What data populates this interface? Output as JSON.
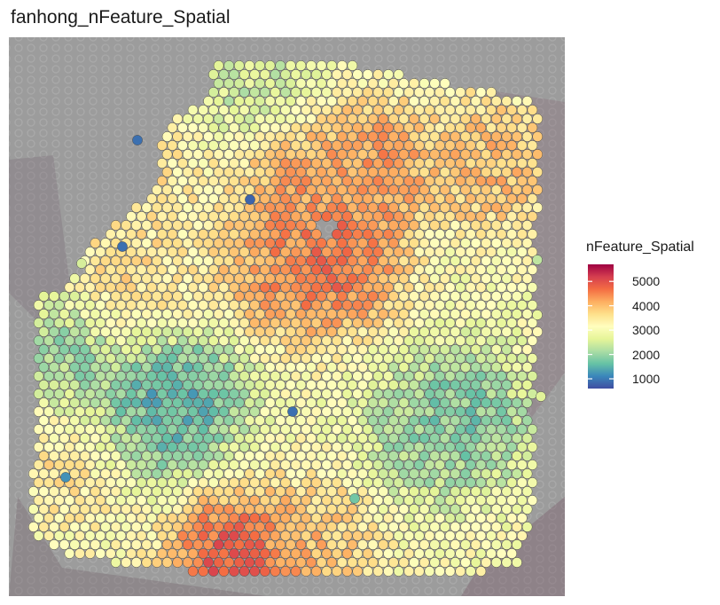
{
  "chart_data": {
    "type": "heatmap",
    "subtype": "spatial-spot-map",
    "title": "fanhong_nFeature_Spatial",
    "xlabel": "",
    "ylabel": "",
    "legend": {
      "title": "nFeature_Spatial",
      "placement": "right",
      "ticks": [
        1000,
        2000,
        3000,
        4000,
        5000
      ],
      "range": [
        600,
        5700
      ],
      "palette": "Spectral (reversed)",
      "colors": [
        "#3f4ea1",
        "#3a87bb",
        "#66c2a5",
        "#abdda4",
        "#e6f598",
        "#fffebe",
        "#fee08b",
        "#fdae61",
        "#f46d43",
        "#d53e4f",
        "#9e0142"
      ]
    },
    "grid": false,
    "background": "tissue image",
    "regions": [
      {
        "name": "center-high",
        "x": 0.5,
        "y": 0.42,
        "value": 4700
      },
      {
        "name": "upper-center-high",
        "x": 0.5,
        "y": 0.22,
        "value": 4600
      },
      {
        "name": "upper-right-high",
        "x": 0.67,
        "y": 0.22,
        "value": 4700
      },
      {
        "name": "right-edge-high",
        "x": 0.9,
        "y": 0.22,
        "value": 4300
      },
      {
        "name": "right-center-high",
        "x": 0.6,
        "y": 0.4,
        "value": 5200
      },
      {
        "name": "bottom-high",
        "x": 0.4,
        "y": 0.97,
        "value": 5500
      },
      {
        "name": "bottom-band",
        "x": 0.55,
        "y": 0.94,
        "value": 4200
      },
      {
        "name": "lower-left-warm",
        "x": 0.1,
        "y": 0.78,
        "value": 3800
      },
      {
        "name": "left-mid-low",
        "x": 0.3,
        "y": 0.66,
        "value": 1100
      },
      {
        "name": "left-mid-low-2",
        "x": 0.22,
        "y": 0.7,
        "value": 1300
      },
      {
        "name": "left-edge-low",
        "x": 0.08,
        "y": 0.58,
        "value": 1700
      },
      {
        "name": "right-low",
        "x": 0.85,
        "y": 0.7,
        "value": 1500
      },
      {
        "name": "right-low-2",
        "x": 0.78,
        "y": 0.73,
        "value": 1800
      },
      {
        "name": "top-left-low",
        "x": 0.45,
        "y": 0.05,
        "value": 2200
      },
      {
        "name": "upper-mid-green",
        "x": 0.4,
        "y": 0.1,
        "value": 2400
      },
      {
        "name": "mid-left-warm",
        "x": 0.2,
        "y": 0.45,
        "value": 3900
      },
      {
        "name": "left-top-warm",
        "x": 0.25,
        "y": 0.22,
        "value": 3700
      }
    ]
  }
}
